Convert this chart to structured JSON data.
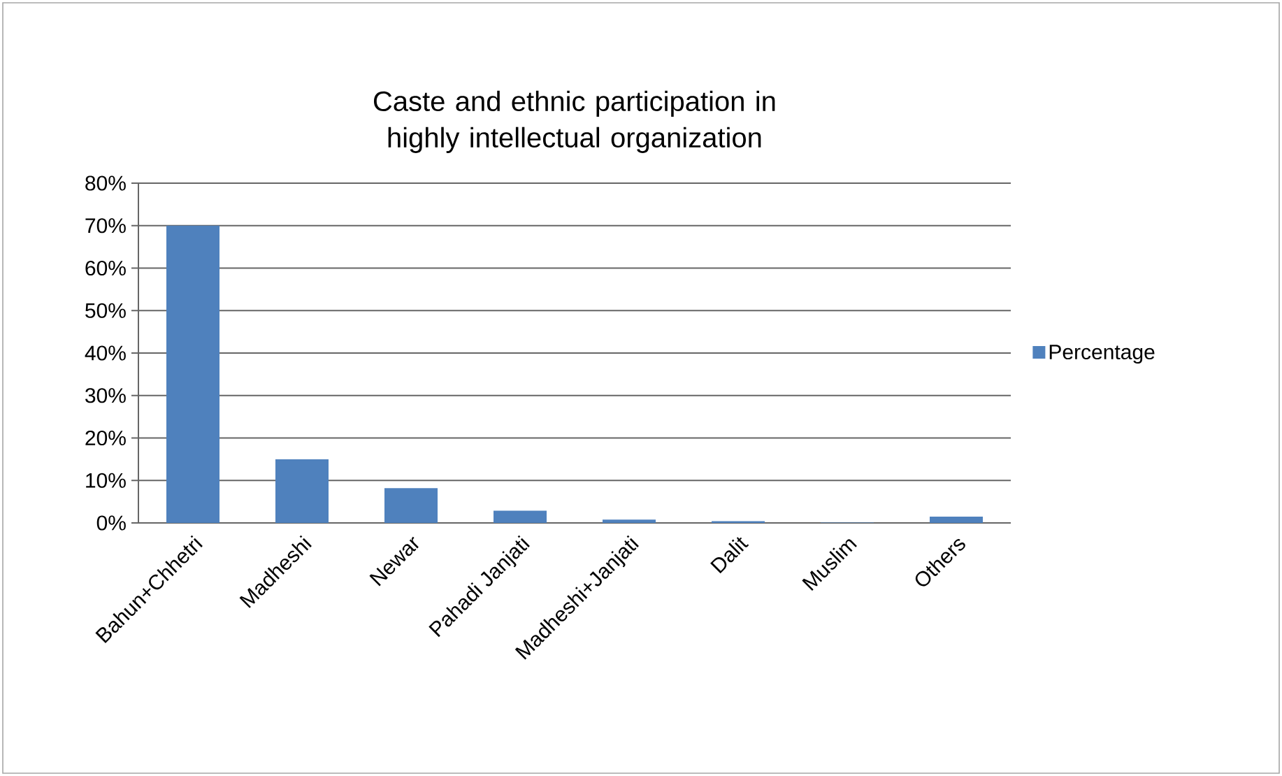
{
  "chart_data": {
    "type": "bar",
    "title": "Caste and ethnic participation in highly intellectual organization",
    "categories": [
      "Bahun+Chhetri",
      "Madheshi",
      "Newar",
      "Pahadi Janjati",
      "Madheshi+Janjati",
      "Dalit",
      "Muslim",
      "Others"
    ],
    "series": [
      {
        "name": "Percentage",
        "color": "#4f81bd",
        "values": [
          70,
          15,
          8.2,
          2.9,
          0.8,
          0.4,
          0.1,
          1.5
        ]
      }
    ],
    "ylim": [
      0,
      80
    ],
    "yticks": [
      {
        "value": 0,
        "label": "0%"
      },
      {
        "value": 10,
        "label": "10%"
      },
      {
        "value": 20,
        "label": "20%"
      },
      {
        "value": 30,
        "label": "30%"
      },
      {
        "value": 40,
        "label": "40%"
      },
      {
        "value": 50,
        "label": "50%"
      },
      {
        "value": 60,
        "label": "60%"
      },
      {
        "value": 70,
        "label": "70%"
      },
      {
        "value": 80,
        "label": "80%"
      }
    ],
    "grid": "y",
    "legend": "right"
  }
}
